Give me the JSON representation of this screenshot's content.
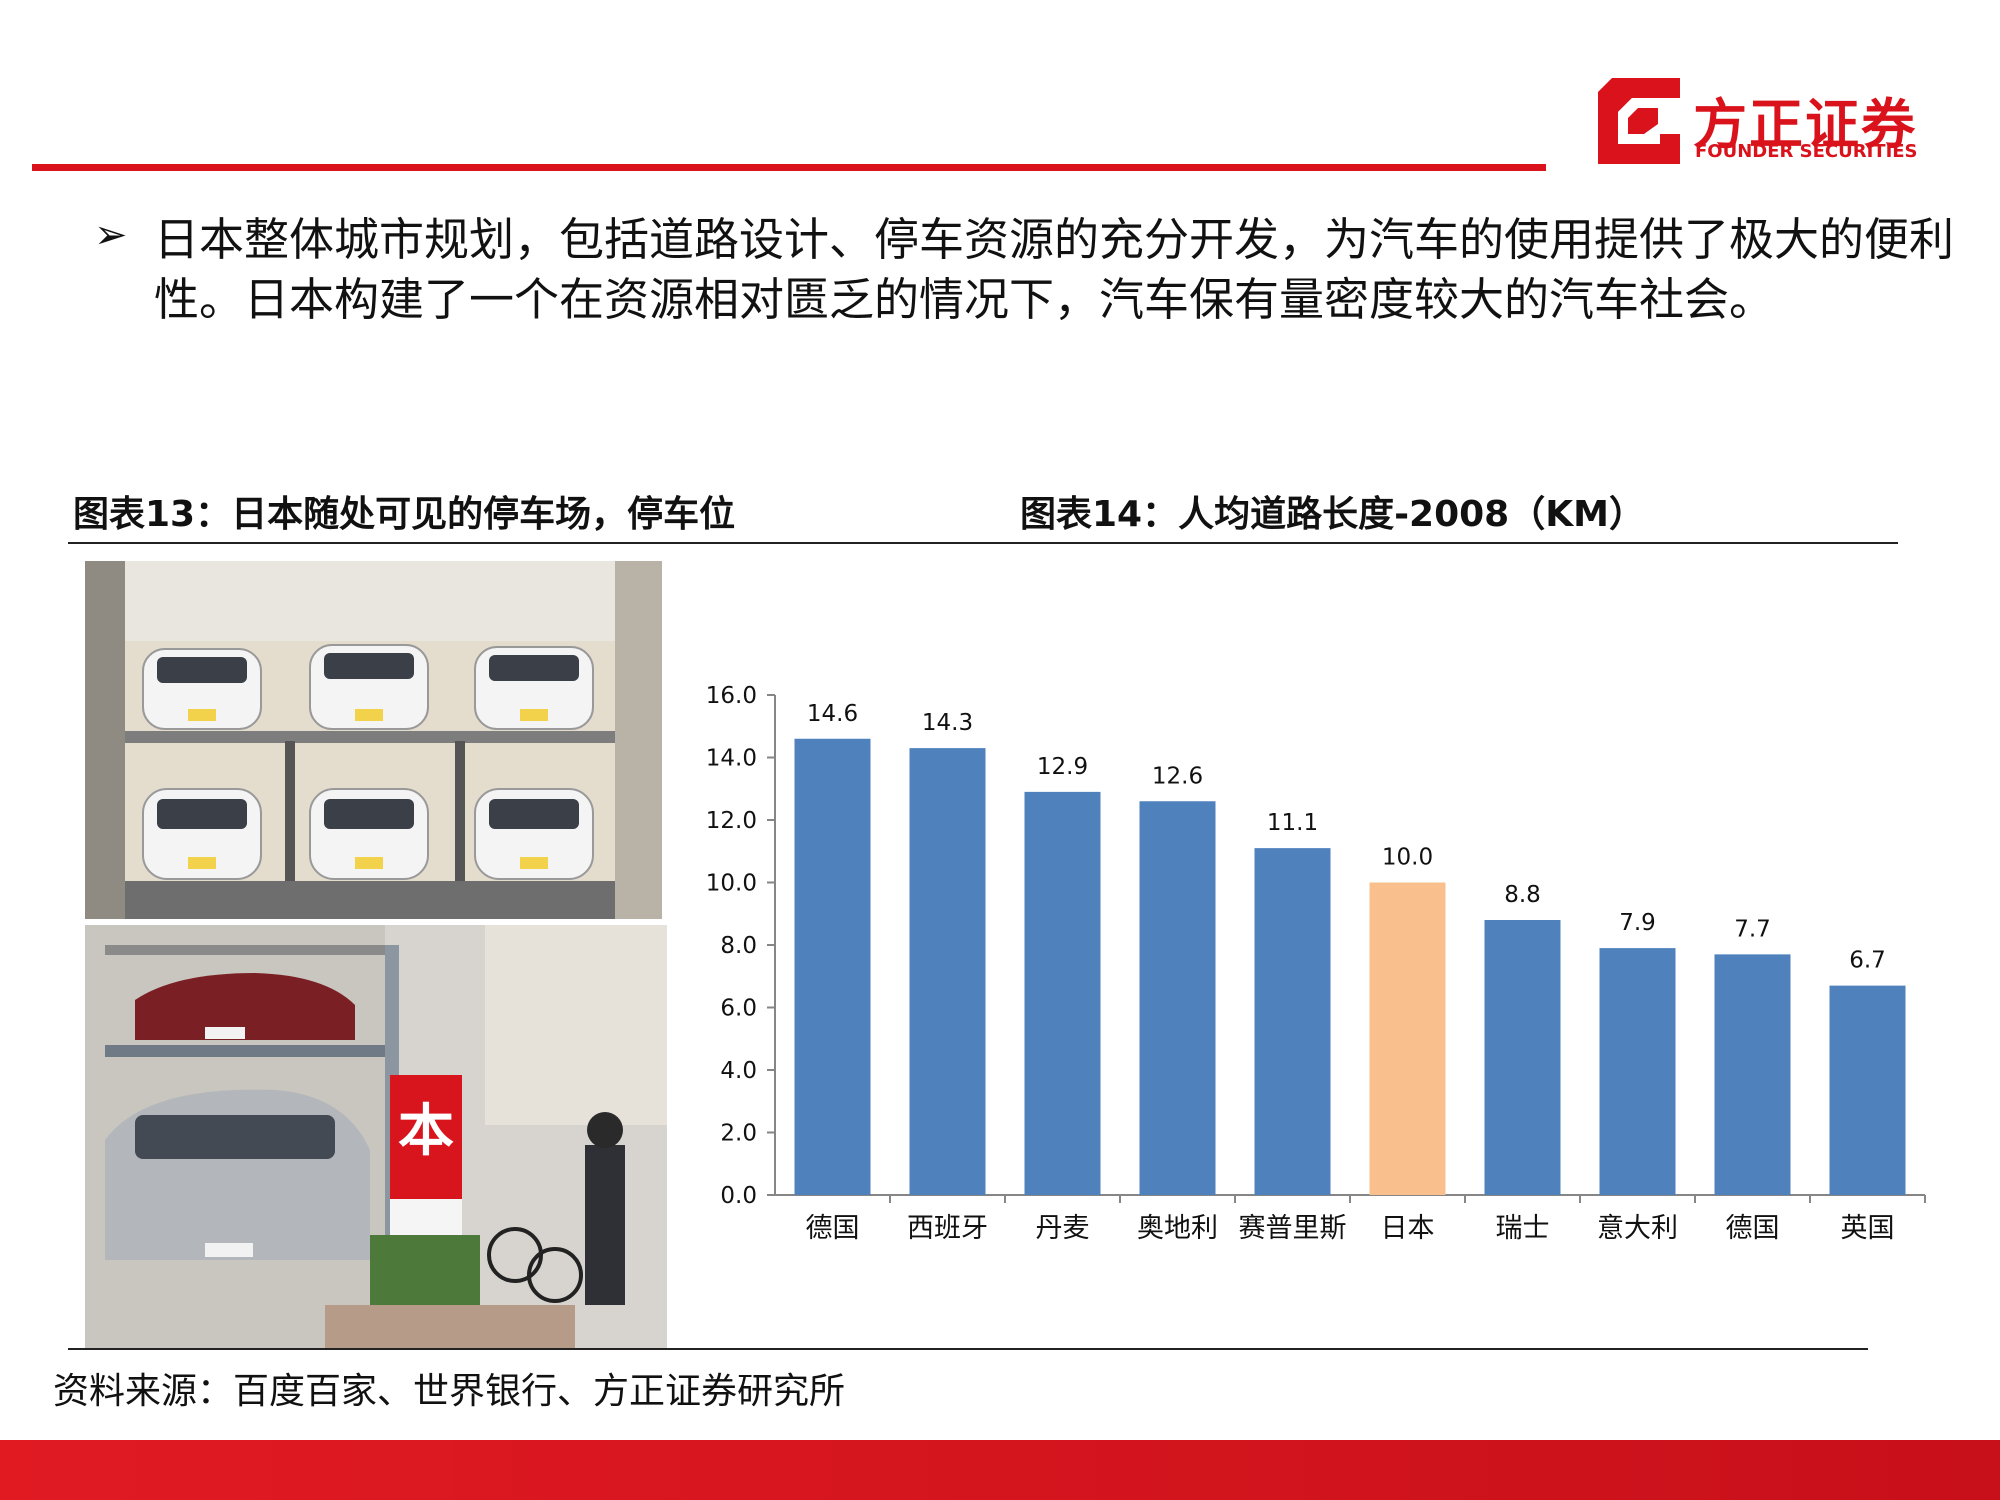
{
  "brand": {
    "name_cn": "方正证券",
    "name_en": "FOUNDER SECURITIES",
    "accent": "#d9121b"
  },
  "bullet": {
    "marker": "➢",
    "text": "日本整体城市规划，包括道路设计、停车资源的充分开发，为汽车的使用提供了极大的便利性。日本构建了一个在资源相对匮乏的情况下，汽车保有量密度较大的汽车社会。"
  },
  "figure13": {
    "title": "图表13：日本随处可见的停车场，停车位",
    "sign_char": "本"
  },
  "figure14": {
    "title": "图表14：人均道路长度-2008（KM）"
  },
  "chart_data": {
    "type": "bar",
    "title": "",
    "xlabel": "",
    "ylabel": "",
    "categories": [
      "德国",
      "西班牙",
      "丹麦",
      "奥地利",
      "赛普里斯",
      "日本",
      "瑞士",
      "意大利",
      "德国",
      "英国"
    ],
    "values": [
      14.6,
      14.3,
      12.9,
      12.6,
      11.1,
      10.0,
      8.8,
      7.9,
      7.7,
      6.7
    ],
    "value_labels": [
      "14.6",
      "14.3",
      "12.9",
      "12.6",
      "11.1",
      "10.0",
      "8.8",
      "7.9",
      "7.7",
      "6.7"
    ],
    "ylim": [
      0,
      16
    ],
    "yticks": [
      "0.0",
      "2.0",
      "4.0",
      "6.0",
      "8.0",
      "10.0",
      "12.0",
      "14.0",
      "16.0"
    ],
    "colors": {
      "default": "#4f81bd",
      "highlight": "#f9c08e",
      "highlight_index": 5
    },
    "grid": false
  },
  "source": {
    "text": "资料来源：百度百家、世界银行、方正证券研究所"
  }
}
